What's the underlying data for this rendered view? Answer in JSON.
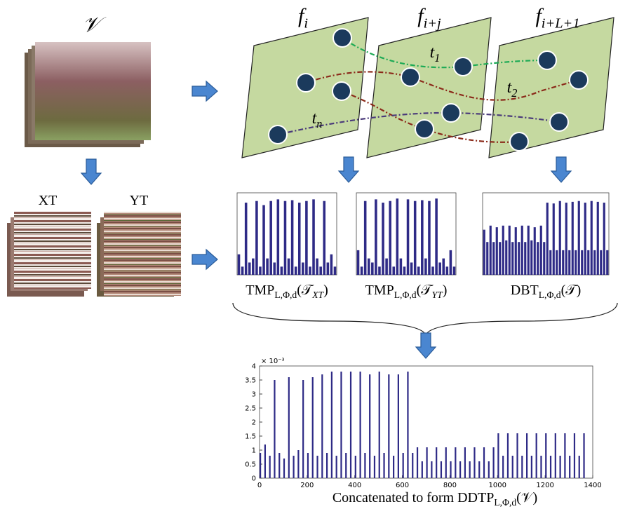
{
  "video_label": "𝒱",
  "xt_label": "XT",
  "yt_label": "YT",
  "frames": [
    {
      "main": "f",
      "sub": "i"
    },
    {
      "main": "f",
      "sub": "i+j"
    },
    {
      "main": "f",
      "sub": "i+L+1"
    }
  ],
  "trajectories": [
    {
      "main": "t",
      "sub": "1"
    },
    {
      "main": "t",
      "sub": "2"
    },
    {
      "main": "t",
      "sub": "n"
    }
  ],
  "histograms": [
    {
      "main": "TMP",
      "sub": "L,Φ,d",
      "arg": "(𝒯",
      "argsub": "XT",
      "close": ")",
      "ylim": [
        0,
        1
      ],
      "values": [
        0.25,
        0.1,
        0.88,
        0.15,
        0.2,
        0.9,
        0.1,
        0.85,
        0.2,
        0.9,
        0.15,
        0.92,
        0.1,
        0.9,
        0.2,
        0.91,
        0.1,
        0.88,
        0.15,
        0.9,
        0.1,
        0.92,
        0.2,
        0.1,
        0.9,
        0.15,
        0.25,
        0.1
      ]
    },
    {
      "main": "TMP",
      "sub": "L,Φ,d",
      "arg": "(𝒯",
      "argsub": "YT",
      "close": ")",
      "ylim": [
        0,
        1
      ],
      "values": [
        0.3,
        0.1,
        0.9,
        0.2,
        0.15,
        0.92,
        0.1,
        0.88,
        0.2,
        0.9,
        0.1,
        0.93,
        0.2,
        0.1,
        0.92,
        0.15,
        0.9,
        0.1,
        0.91,
        0.2,
        0.9,
        0.1,
        0.93,
        0.15,
        0.2,
        0.1,
        0.3,
        0.1
      ]
    },
    {
      "main": "DBT",
      "sub": "L,Φ,d",
      "arg": "(𝒯",
      "argsub": "",
      "close": ")",
      "ylim": [
        0,
        1
      ],
      "values": [
        0.55,
        0.4,
        0.6,
        0.4,
        0.58,
        0.4,
        0.6,
        0.42,
        0.6,
        0.4,
        0.58,
        0.4,
        0.6,
        0.4,
        0.6,
        0.42,
        0.58,
        0.4,
        0.6,
        0.4,
        0.88,
        0.3,
        0.87,
        0.3,
        0.9,
        0.3,
        0.88,
        0.3,
        0.89,
        0.3,
        0.9,
        0.3,
        0.88,
        0.3,
        0.9,
        0.3,
        0.89,
        0.3,
        0.88,
        0.3
      ]
    }
  ],
  "chart_data": {
    "type": "bar",
    "multiplier_label": "× 10⁻³",
    "x": [
      0,
      20,
      40,
      60,
      80,
      100,
      120,
      140,
      160,
      180,
      200,
      220,
      240,
      260,
      280,
      300,
      320,
      340,
      360,
      380,
      400,
      420,
      440,
      460,
      480,
      500,
      520,
      540,
      560,
      580,
      600,
      620,
      640,
      660,
      680,
      700,
      720,
      740,
      760,
      780,
      800,
      820,
      840,
      860,
      880,
      900,
      920,
      940,
      960,
      980,
      1000,
      1020,
      1040,
      1060,
      1080,
      1100,
      1120,
      1140,
      1160,
      1180,
      1200,
      1220,
      1240,
      1260,
      1280,
      1300,
      1320,
      1340,
      1360
    ],
    "values": [
      0.9,
      1.2,
      0.8,
      3.5,
      0.9,
      0.7,
      3.6,
      0.8,
      1.0,
      3.5,
      0.9,
      3.6,
      0.8,
      3.7,
      0.9,
      3.8,
      0.8,
      3.8,
      0.9,
      3.8,
      0.8,
      3.8,
      0.9,
      3.7,
      0.8,
      3.8,
      0.9,
      3.7,
      0.8,
      3.7,
      0.9,
      3.8,
      0.9,
      1.1,
      0.6,
      1.1,
      0.6,
      1.1,
      0.6,
      1.1,
      0.6,
      1.1,
      0.6,
      1.1,
      0.6,
      1.1,
      0.6,
      1.1,
      0.6,
      1.1,
      1.6,
      0.8,
      1.6,
      0.8,
      1.6,
      0.8,
      1.6,
      0.8,
      1.6,
      0.8,
      1.6,
      0.8,
      1.6,
      0.8,
      1.6,
      0.8,
      1.6,
      0.8,
      1.6
    ],
    "color": "#2e2a86",
    "xlim": [
      0,
      1400
    ],
    "ylim": [
      0,
      4
    ],
    "xticks": [
      0,
      200,
      400,
      600,
      800,
      1000,
      1200,
      1400
    ],
    "yticks": [
      0,
      0.5,
      1,
      1.5,
      2,
      2.5,
      3,
      3.5,
      4
    ],
    "caption": {
      "main": "Concatenated to form DDTP",
      "sub": "L,Φ,d",
      "arg": "(𝒱)"
    }
  }
}
